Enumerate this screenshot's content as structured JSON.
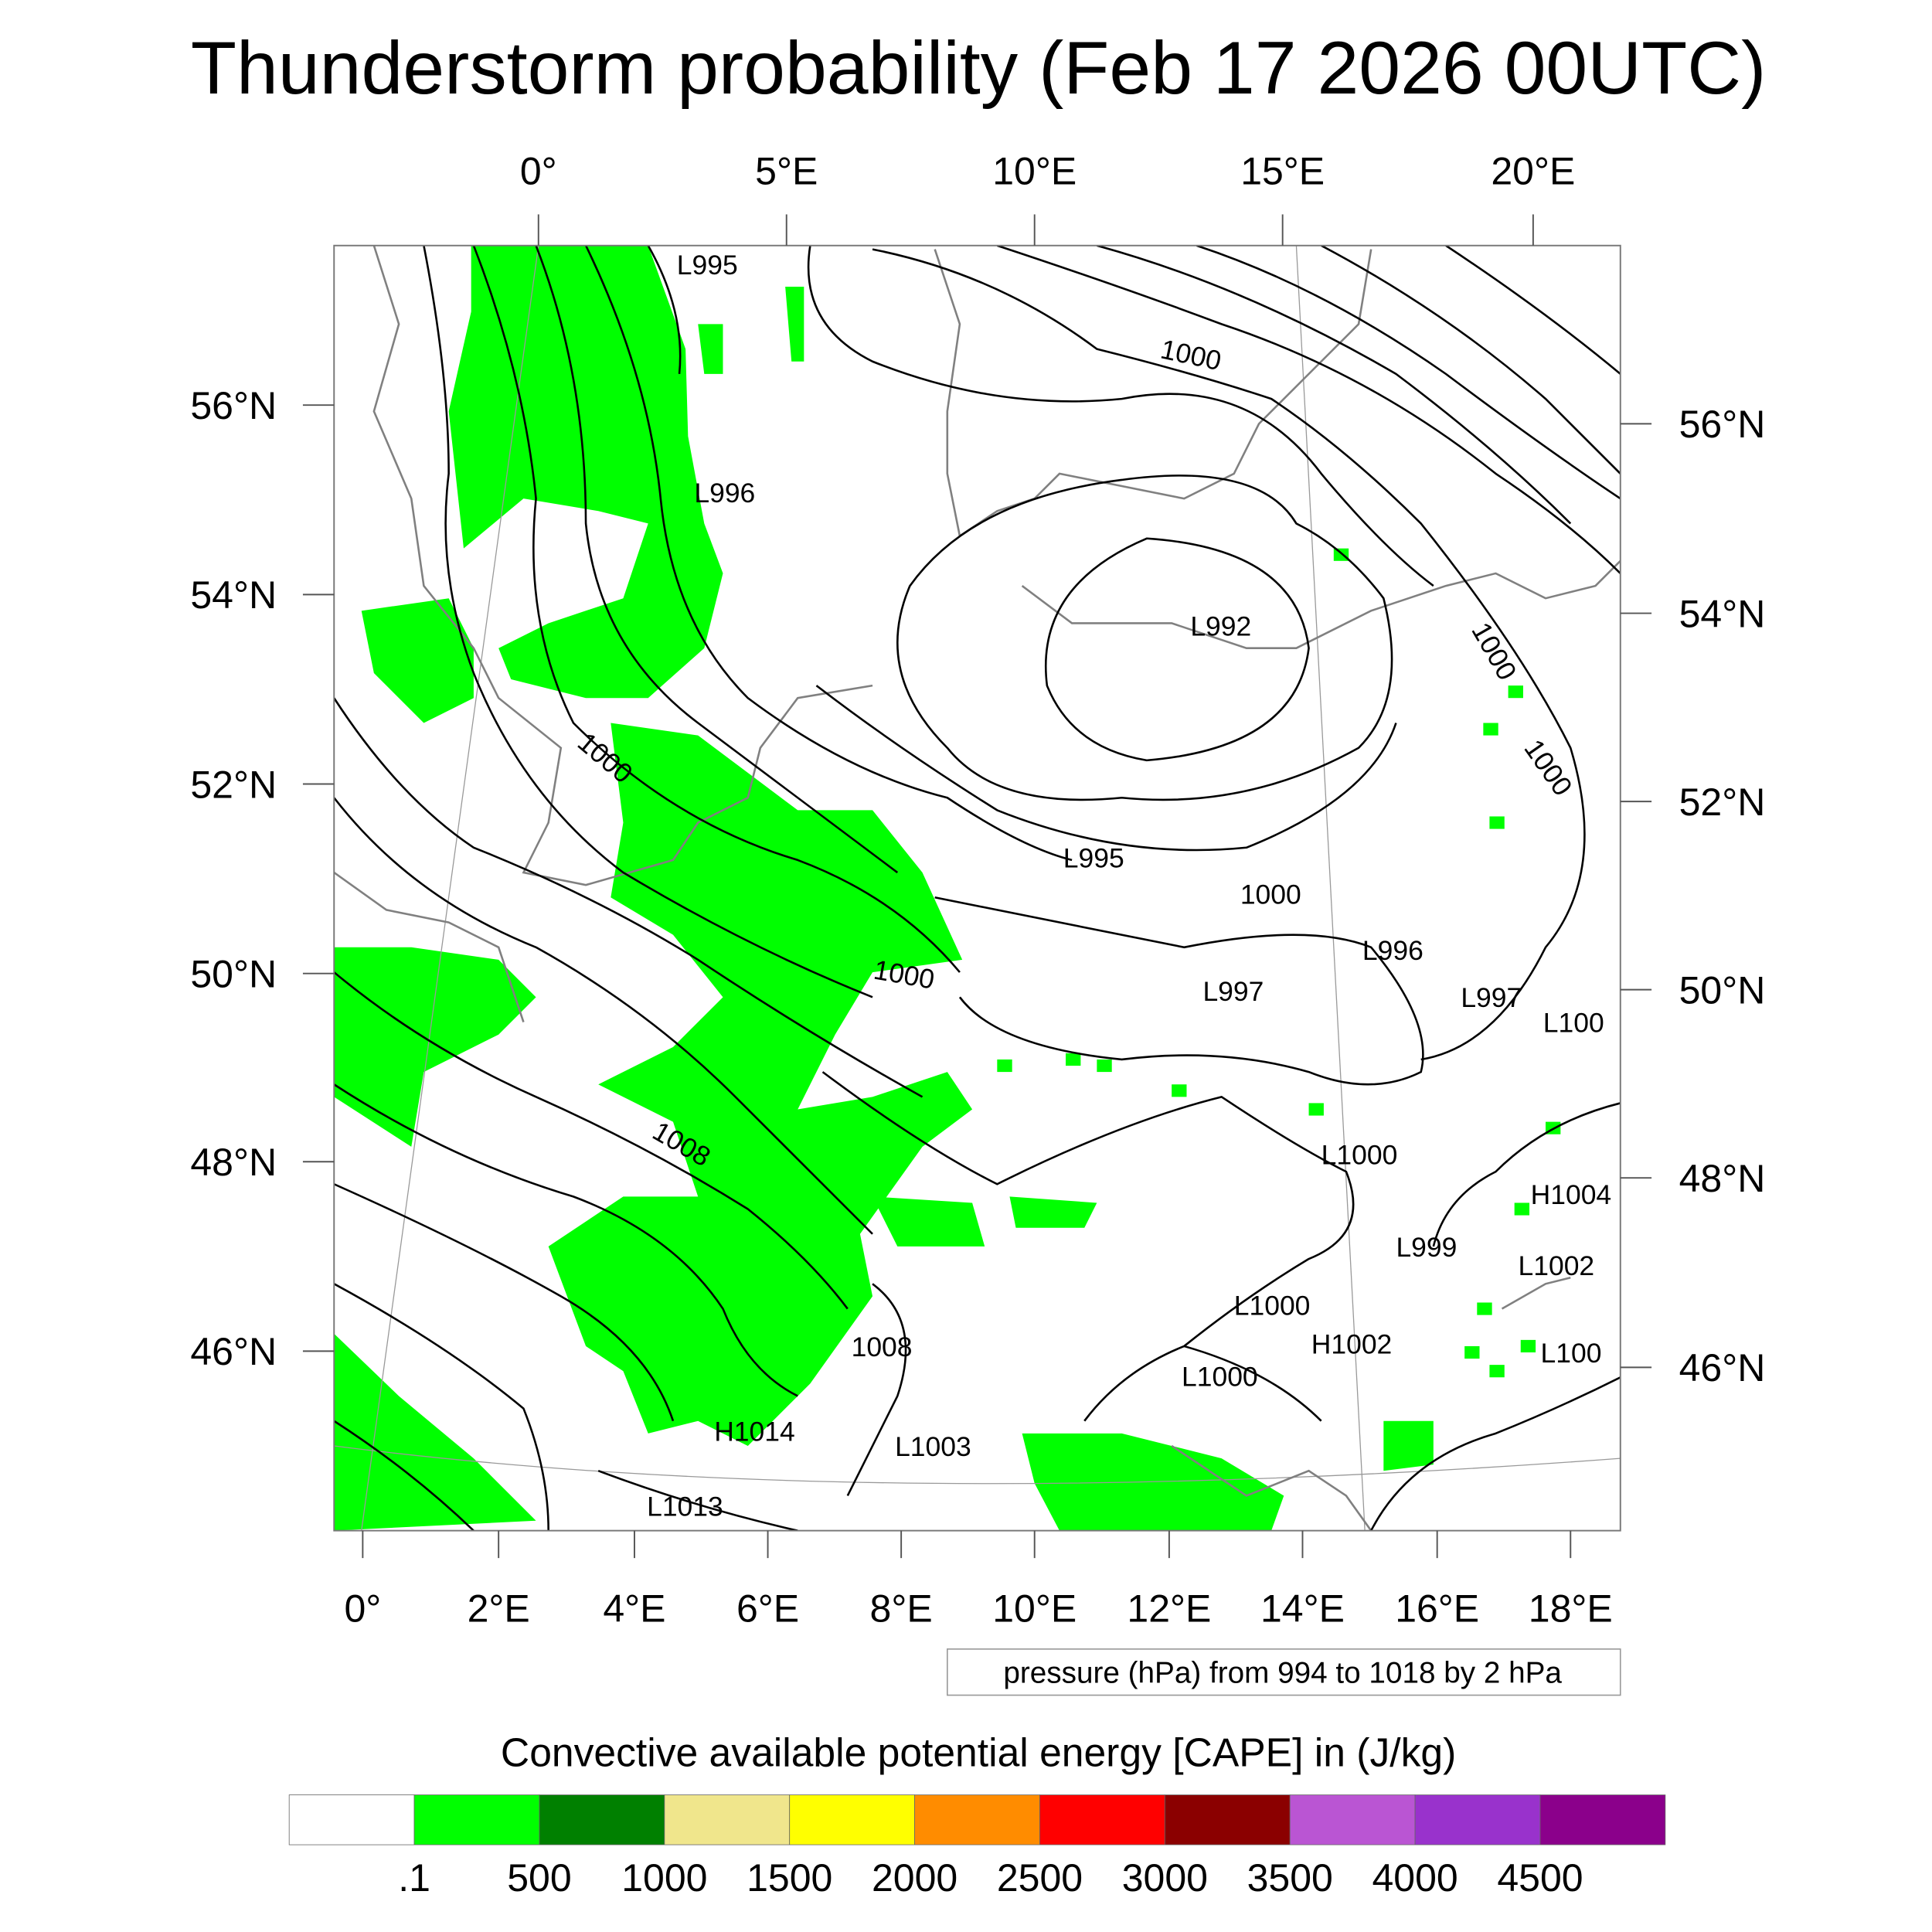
{
  "chart_data": {
    "type": "heatmap",
    "title": "Thunderstorm probability (Feb 17 2026 00UTC)",
    "top_lon_ticks": [
      "0°",
      "5°E",
      "10°E",
      "15°E",
      "20°E"
    ],
    "bottom_lon_ticks": [
      "0°",
      "2°E",
      "4°E",
      "6°E",
      "8°E",
      "10°E",
      "12°E",
      "14°E",
      "16°E",
      "18°E"
    ],
    "left_lat_ticks": [
      "56°N",
      "54°N",
      "52°N",
      "50°N",
      "48°N",
      "46°N"
    ],
    "right_lat_ticks": [
      "56°N",
      "54°N",
      "52°N",
      "50°N",
      "48°N",
      "46°N"
    ],
    "contour_info": "pressure (hPa) from 994 to 1018 by 2 hPa",
    "contour_labels": [
      "L995",
      "L996",
      "1000",
      "1000",
      "L992",
      "1000",
      "1000",
      "1000",
      "L995",
      "1000",
      "L996",
      "L997",
      "L997",
      "L100",
      "1008",
      "L1000",
      "H1004",
      "L999",
      "L1002",
      "L1000",
      "H1002",
      "L1000",
      "L100",
      "1008",
      "H1014",
      "L1003",
      "L1013"
    ],
    "colorbar": {
      "title": "Convective available potential energy [CAPE] in (J/kg)",
      "levels": [
        ".1",
        "500",
        "1000",
        "1500",
        "2000",
        "2500",
        "3000",
        "3500",
        "4000",
        "4500"
      ],
      "colors": [
        "#FFFFFF",
        "#00FF00",
        "#008000",
        "#F0E68C",
        "#FFFF00",
        "#FF8C00",
        "#FF0000",
        "#8B0000",
        "#BA55D3",
        "#9932CC",
        "#8B008B"
      ]
    },
    "map_fill_color": "#00FF00",
    "coast_color": "#808080"
  }
}
